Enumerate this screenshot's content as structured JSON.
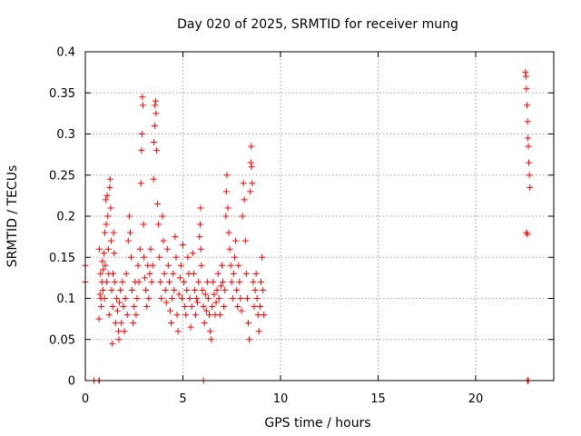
{
  "chart_data": {
    "type": "scatter",
    "title": "Day 020 of 2025, SRMTID for receiver mung",
    "xlabel": "GPS time / hours",
    "ylabel": "SRMTID / TECUs",
    "xlim": [
      0,
      24
    ],
    "ylim": [
      0,
      0.4
    ],
    "xticks": [
      0,
      5,
      10,
      15,
      20
    ],
    "xtick_labels": [
      "0",
      "5",
      "10",
      "15",
      "20"
    ],
    "yticks": [
      0,
      0.05,
      0.1,
      0.15,
      0.2,
      0.25,
      0.3,
      0.35,
      0.4
    ],
    "ytick_labels": [
      "0",
      "0.05",
      "0.1",
      "0.15",
      "0.2",
      "0.25",
      "0.3",
      "0.35",
      "0.4"
    ],
    "grid": true,
    "marker": "plus",
    "color": "#ff0000",
    "series": [
      {
        "name": "SRMTID",
        "points": [
          [
            0.0,
            0.12
          ],
          [
            0.0,
            0.14
          ],
          [
            0.45,
            0.0
          ],
          [
            0.7,
            0.0
          ],
          [
            0.72,
            0.0
          ],
          [
            6.05,
            0.0
          ],
          [
            22.65,
            0.0
          ],
          [
            22.7,
            0.0
          ],
          [
            0.7,
            0.075
          ],
          [
            0.72,
            0.16
          ],
          [
            0.75,
            0.105
          ],
          [
            0.78,
            0.13
          ],
          [
            0.8,
            0.1
          ],
          [
            0.82,
            0.09
          ],
          [
            0.85,
            0.12
          ],
          [
            0.88,
            0.145
          ],
          [
            0.9,
            0.11
          ],
          [
            0.92,
            0.135
          ],
          [
            0.95,
            0.155
          ],
          [
            0.98,
            0.1
          ],
          [
            1.0,
            0.18
          ],
          [
            1.02,
            0.14
          ],
          [
            1.05,
            0.22
          ],
          [
            1.07,
            0.19
          ],
          [
            1.1,
            0.12
          ],
          [
            1.12,
            0.225
          ],
          [
            1.15,
            0.2
          ],
          [
            1.18,
            0.16
          ],
          [
            1.2,
            0.13
          ],
          [
            1.22,
            0.08
          ],
          [
            1.25,
            0.235
          ],
          [
            1.27,
            0.245
          ],
          [
            1.3,
            0.21
          ],
          [
            1.32,
            0.17
          ],
          [
            1.35,
            0.11
          ],
          [
            1.38,
            0.045
          ],
          [
            1.4,
            0.09
          ],
          [
            1.42,
            0.13
          ],
          [
            1.45,
            0.18
          ],
          [
            1.48,
            0.155
          ],
          [
            1.5,
            0.12
          ],
          [
            1.55,
            0.07
          ],
          [
            1.6,
            0.1
          ],
          [
            1.65,
            0.085
          ],
          [
            1.7,
            0.06
          ],
          [
            1.72,
            0.05
          ],
          [
            1.75,
            0.095
          ],
          [
            1.8,
            0.11
          ],
          [
            1.85,
            0.07
          ],
          [
            1.9,
            0.12
          ],
          [
            1.95,
            0.09
          ],
          [
            2.0,
            0.06
          ],
          [
            2.05,
            0.1
          ],
          [
            2.1,
            0.13
          ],
          [
            2.15,
            0.08
          ],
          [
            2.2,
            0.17
          ],
          [
            2.25,
            0.2
          ],
          [
            2.3,
            0.18
          ],
          [
            2.35,
            0.15
          ],
          [
            2.4,
            0.11
          ],
          [
            2.45,
            0.07
          ],
          [
            2.5,
            0.09
          ],
          [
            2.55,
            0.12
          ],
          [
            2.6,
            0.08
          ],
          [
            2.65,
            0.1
          ],
          [
            2.7,
            0.14
          ],
          [
            2.75,
            0.12
          ],
          [
            2.8,
            0.16
          ],
          [
            2.85,
            0.24
          ],
          [
            2.88,
            0.28
          ],
          [
            2.9,
            0.3
          ],
          [
            2.92,
            0.345
          ],
          [
            2.95,
            0.335
          ],
          [
            2.98,
            0.19
          ],
          [
            3.0,
            0.15
          ],
          [
            3.05,
            0.125
          ],
          [
            3.1,
            0.11
          ],
          [
            3.15,
            0.09
          ],
          [
            3.2,
            0.14
          ],
          [
            3.25,
            0.1
          ],
          [
            3.3,
            0.13
          ],
          [
            3.35,
            0.16
          ],
          [
            3.4,
            0.12
          ],
          [
            3.45,
            0.14
          ],
          [
            3.5,
            0.245
          ],
          [
            3.52,
            0.29
          ],
          [
            3.55,
            0.31
          ],
          [
            3.57,
            0.335
          ],
          [
            3.6,
            0.34
          ],
          [
            3.62,
            0.325
          ],
          [
            3.65,
            0.28
          ],
          [
            3.7,
            0.215
          ],
          [
            3.75,
            0.19
          ],
          [
            3.8,
            0.15
          ],
          [
            3.85,
            0.12
          ],
          [
            3.9,
            0.1
          ],
          [
            3.95,
            0.2
          ],
          [
            4.0,
            0.17
          ],
          [
            4.05,
            0.13
          ],
          [
            4.1,
            0.11
          ],
          [
            4.15,
            0.095
          ],
          [
            4.2,
            0.16
          ],
          [
            4.25,
            0.14
          ],
          [
            4.3,
            0.12
          ],
          [
            4.35,
            0.085
          ],
          [
            4.4,
            0.07
          ],
          [
            4.45,
            0.1
          ],
          [
            4.5,
            0.13
          ],
          [
            4.55,
            0.11
          ],
          [
            4.6,
            0.175
          ],
          [
            4.65,
            0.15
          ],
          [
            4.7,
            0.08
          ],
          [
            4.75,
            0.06
          ],
          [
            4.8,
            0.105
          ],
          [
            4.85,
            0.125
          ],
          [
            4.9,
            0.14
          ],
          [
            4.95,
            0.1
          ],
          [
            5.0,
            0.165
          ],
          [
            5.05,
            0.12
          ],
          [
            5.1,
            0.09
          ],
          [
            5.15,
            0.08
          ],
          [
            5.2,
            0.11
          ],
          [
            5.25,
            0.15
          ],
          [
            5.3,
            0.13
          ],
          [
            5.35,
            0.1
          ],
          [
            5.4,
            0.065
          ],
          [
            5.45,
            0.09
          ],
          [
            5.5,
            0.155
          ],
          [
            5.55,
            0.13
          ],
          [
            5.6,
            0.11
          ],
          [
            5.65,
            0.08
          ],
          [
            5.7,
            0.1
          ],
          [
            5.75,
            0.095
          ],
          [
            5.8,
            0.12
          ],
          [
            5.85,
            0.175
          ],
          [
            5.88,
            0.19
          ],
          [
            5.9,
            0.21
          ],
          [
            5.92,
            0.16
          ],
          [
            5.95,
            0.14
          ],
          [
            6.0,
            0.11
          ],
          [
            6.05,
            0.09
          ],
          [
            6.1,
            0.07
          ],
          [
            6.15,
            0.105
          ],
          [
            6.2,
            0.085
          ],
          [
            6.25,
            0.12
          ],
          [
            6.3,
            0.1
          ],
          [
            6.35,
            0.08
          ],
          [
            6.4,
            0.06
          ],
          [
            6.45,
            0.05
          ],
          [
            6.5,
            0.09
          ],
          [
            6.55,
            0.12
          ],
          [
            6.6,
            0.105
          ],
          [
            6.65,
            0.08
          ],
          [
            6.7,
            0.095
          ],
          [
            6.75,
            0.11
          ],
          [
            6.8,
            0.13
          ],
          [
            6.85,
            0.1
          ],
          [
            6.9,
            0.08
          ],
          [
            6.95,
            0.115
          ],
          [
            7.0,
            0.14
          ],
          [
            7.05,
            0.12
          ],
          [
            7.1,
            0.09
          ],
          [
            7.15,
            0.11
          ],
          [
            7.2,
            0.2
          ],
          [
            7.22,
            0.23
          ],
          [
            7.25,
            0.25
          ],
          [
            7.3,
            0.21
          ],
          [
            7.35,
            0.18
          ],
          [
            7.4,
            0.16
          ],
          [
            7.45,
            0.14
          ],
          [
            7.5,
            0.12
          ],
          [
            7.55,
            0.1
          ],
          [
            7.6,
            0.13
          ],
          [
            7.65,
            0.15
          ],
          [
            7.7,
            0.17
          ],
          [
            7.75,
            0.11
          ],
          [
            7.8,
            0.09
          ],
          [
            7.85,
            0.14
          ],
          [
            7.9,
            0.12
          ],
          [
            7.95,
            0.1
          ],
          [
            8.0,
            0.085
          ],
          [
            8.05,
            0.2
          ],
          [
            8.1,
            0.24
          ],
          [
            8.15,
            0.22
          ],
          [
            8.2,
            0.17
          ],
          [
            8.25,
            0.13
          ],
          [
            8.3,
            0.1
          ],
          [
            8.35,
            0.07
          ],
          [
            8.4,
            0.05
          ],
          [
            8.45,
            0.23
          ],
          [
            8.48,
            0.265
          ],
          [
            8.5,
            0.285
          ],
          [
            8.52,
            0.26
          ],
          [
            8.55,
            0.24
          ],
          [
            8.6,
            0.12
          ],
          [
            8.65,
            0.09
          ],
          [
            8.7,
            0.11
          ],
          [
            8.75,
            0.13
          ],
          [
            8.8,
            0.1
          ],
          [
            8.85,
            0.08
          ],
          [
            8.9,
            0.06
          ],
          [
            8.95,
            0.09
          ],
          [
            9.0,
            0.12
          ],
          [
            9.05,
            0.15
          ],
          [
            9.1,
            0.11
          ],
          [
            9.15,
            0.08
          ],
          [
            22.55,
            0.375
          ],
          [
            22.58,
            0.37
          ],
          [
            22.6,
            0.355
          ],
          [
            22.63,
            0.335
          ],
          [
            22.66,
            0.315
          ],
          [
            22.68,
            0.295
          ],
          [
            22.7,
            0.285
          ],
          [
            22.72,
            0.265
          ],
          [
            22.75,
            0.25
          ],
          [
            22.78,
            0.235
          ],
          [
            22.6,
            0.18
          ],
          [
            22.65,
            0.178
          ]
        ]
      }
    ]
  }
}
